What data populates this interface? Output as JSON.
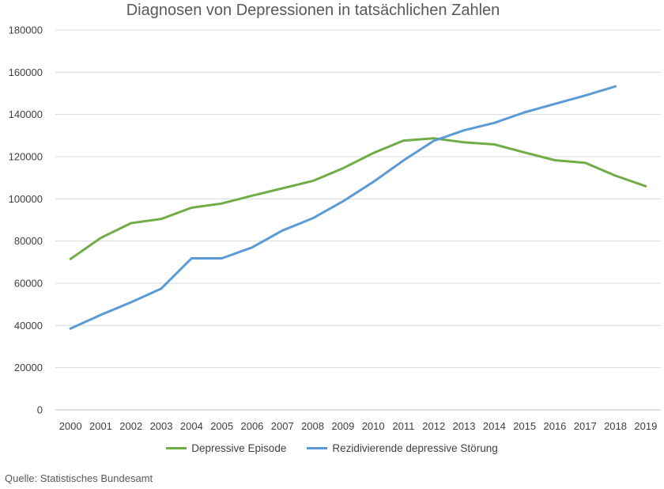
{
  "chart_data": {
    "type": "line",
    "title": "Diagnosen von Depressionen in tatsächlichen Zahlen",
    "xlabel": "",
    "ylabel": "",
    "categories": [
      "2000",
      "2001",
      "2002",
      "2003",
      "2004",
      "2005",
      "2006",
      "2007",
      "2008",
      "2009",
      "2010",
      "2011",
      "2012",
      "2013",
      "2014",
      "2015",
      "2016",
      "2017",
      "2018",
      "2019"
    ],
    "ylim": [
      0,
      180000
    ],
    "yticks": [
      0,
      20000,
      40000,
      60000,
      80000,
      100000,
      120000,
      140000,
      160000,
      180000
    ],
    "grid": true,
    "legend_position": "bottom",
    "series": [
      {
        "name": "Depressive Episode",
        "color": "#70AD47",
        "values": [
          71500,
          81500,
          88500,
          90500,
          95800,
          97800,
          101500,
          105000,
          108500,
          114500,
          121700,
          127600,
          128700,
          126800,
          125800,
          122000,
          118300,
          117100,
          111000,
          106000
        ]
      },
      {
        "name": "Rezidivierende depressive Störung",
        "color": "#5B9BD5",
        "values": [
          38500,
          45000,
          51000,
          57500,
          71800,
          71800,
          77000,
          85000,
          90800,
          98800,
          108000,
          118200,
          127500,
          132500,
          136000,
          141000,
          145000,
          149000,
          153300,
          null
        ]
      }
    ]
  },
  "source_note": "Quelle: Statistisches Bundesamt"
}
